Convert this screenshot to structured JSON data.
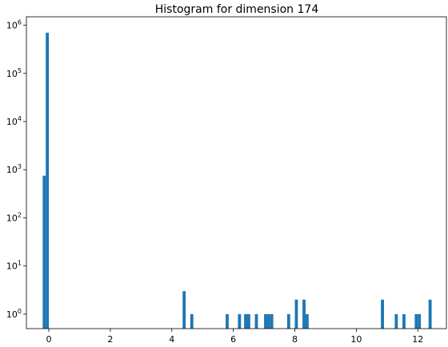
{
  "chart_data": {
    "type": "bar",
    "title": "Histogram for dimension 174",
    "xlabel": "",
    "ylabel": "",
    "yscale": "log",
    "xlim": [
      -0.73,
      12.93
    ],
    "ylim": [
      0.5,
      1500000
    ],
    "grid": false,
    "legend": "none",
    "bar_color": "#1f77b4",
    "bin_width": 0.1,
    "x_ticks": [
      {
        "value": 0,
        "label": "0"
      },
      {
        "value": 2,
        "label": "2"
      },
      {
        "value": 4,
        "label": "4"
      },
      {
        "value": 6,
        "label": "6"
      },
      {
        "value": 8,
        "label": "8"
      },
      {
        "value": 10,
        "label": "10"
      },
      {
        "value": 12,
        "label": "12"
      }
    ],
    "y_ticks": [
      {
        "value": 1,
        "base": "10",
        "exp": "0"
      },
      {
        "value": 10,
        "base": "10",
        "exp": "1"
      },
      {
        "value": 100,
        "base": "10",
        "exp": "2"
      },
      {
        "value": 1000,
        "base": "10",
        "exp": "3"
      },
      {
        "value": 10000,
        "base": "10",
        "exp": "4"
      },
      {
        "value": 100000,
        "base": "10",
        "exp": "5"
      },
      {
        "value": 1000000,
        "base": "10",
        "exp": "6"
      }
    ],
    "bins": [
      {
        "x": -0.2,
        "count": 750
      },
      {
        "x": -0.1,
        "count": 700000
      },
      {
        "x": 4.35,
        "count": 3
      },
      {
        "x": 4.6,
        "count": 1
      },
      {
        "x": 5.75,
        "count": 1
      },
      {
        "x": 6.15,
        "count": 1
      },
      {
        "x": 6.35,
        "count": 1
      },
      {
        "x": 6.45,
        "count": 1
      },
      {
        "x": 6.7,
        "count": 1
      },
      {
        "x": 7.0,
        "count": 1
      },
      {
        "x": 7.1,
        "count": 1
      },
      {
        "x": 7.2,
        "count": 1
      },
      {
        "x": 7.75,
        "count": 1
      },
      {
        "x": 8.0,
        "count": 2
      },
      {
        "x": 8.25,
        "count": 2
      },
      {
        "x": 8.35,
        "count": 1
      },
      {
        "x": 10.8,
        "count": 2
      },
      {
        "x": 11.25,
        "count": 1
      },
      {
        "x": 11.5,
        "count": 1
      },
      {
        "x": 11.9,
        "count": 1
      },
      {
        "x": 12.0,
        "count": 1
      },
      {
        "x": 12.35,
        "count": 2
      }
    ]
  }
}
